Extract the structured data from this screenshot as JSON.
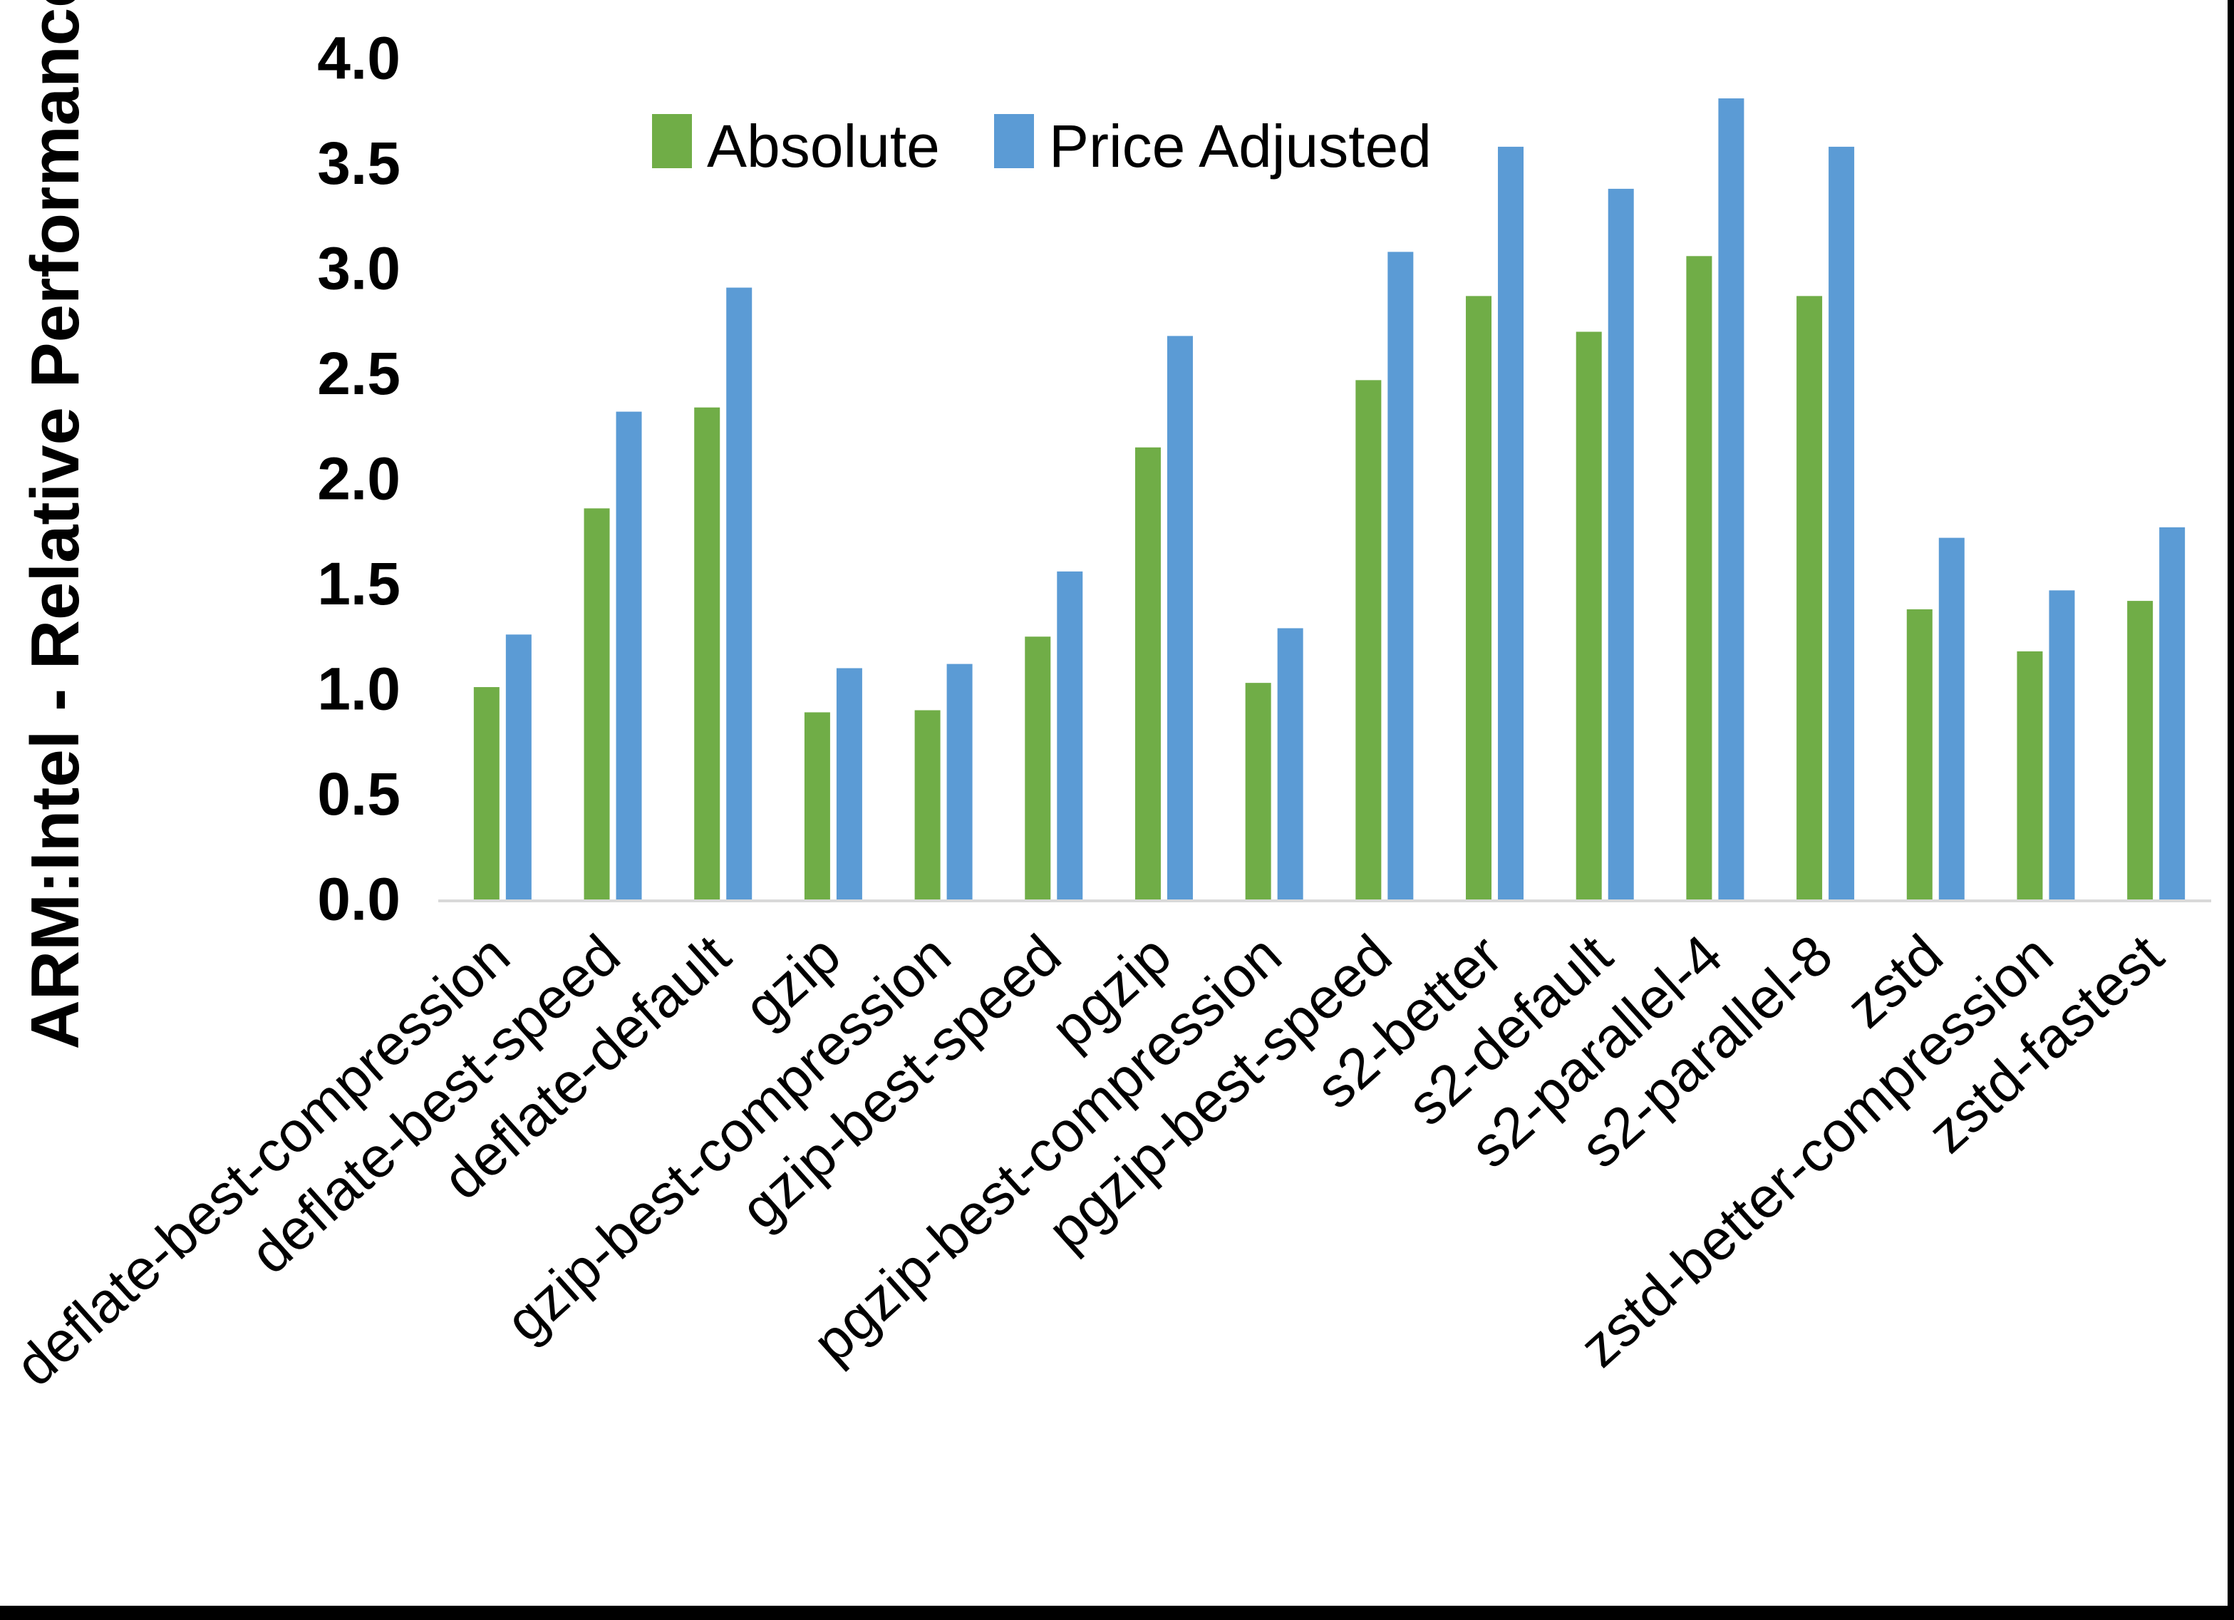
{
  "chart_data": {
    "type": "bar",
    "title": "",
    "ylabel": "ARM:Intel - Relative Performance",
    "xlabel": "",
    "ylim": [
      0,
      4
    ],
    "ytick_step": 0.5,
    "ytick_labels": [
      "0.0",
      "0.5",
      "1.0",
      "1.5",
      "2.0",
      "2.5",
      "3.0",
      "3.5",
      "4.0"
    ],
    "grid": false,
    "legend_position": "top-center",
    "categories": [
      "deflate-best-compression",
      "deflate-best-speed",
      "deflate-default",
      "gzip",
      "gzip-best-compression",
      "gzip-best-speed",
      "pgzip",
      "pgzip-best-compression",
      "pgzip-best-speed",
      "s2-better",
      "s2-default",
      "s2-parallel-4",
      "s2-parallel-8",
      "zstd",
      "zstd-better-compression",
      "zstd-fastest"
    ],
    "series": [
      {
        "name": "Absolute",
        "color": "#70AD47",
        "values": [
          1.01,
          1.86,
          2.34,
          0.89,
          0.9,
          1.25,
          2.15,
          1.03,
          2.47,
          2.87,
          2.7,
          3.06,
          2.87,
          1.38,
          1.18,
          1.42
        ]
      },
      {
        "name": "Price Adjusted",
        "color": "#5B9BD5",
        "values": [
          1.26,
          2.32,
          2.91,
          1.1,
          1.12,
          1.56,
          2.68,
          1.29,
          3.08,
          3.58,
          3.38,
          3.81,
          3.58,
          1.72,
          1.47,
          1.77
        ]
      }
    ],
    "axis_line_color": "#D9D9D9",
    "text_color": "#000000"
  },
  "frame": {
    "background": "#FFFFFF",
    "border_color": "#000000"
  }
}
